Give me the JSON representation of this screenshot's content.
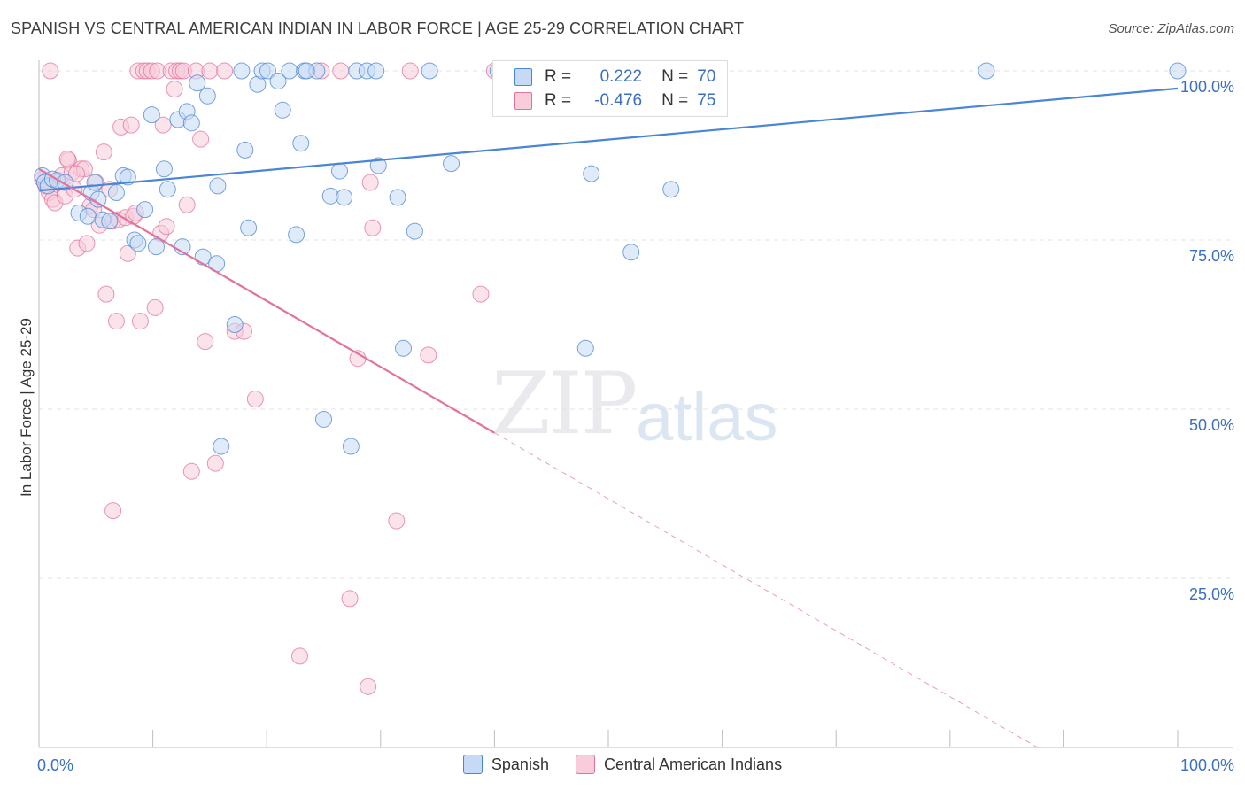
{
  "header": {
    "title": "SPANISH VS CENTRAL AMERICAN INDIAN IN LABOR FORCE | AGE 25-29 CORRELATION CHART",
    "source": "Source: ZipAtlas.com"
  },
  "watermark": {
    "zip": "ZIP",
    "atlas": "atlas"
  },
  "colors": {
    "spanish": "#4a86d6",
    "spanish_fill": "#c7daf5",
    "cai": "#e2739a",
    "cai_fill": "#f8ccdb",
    "tick_label": "#3a6fc4"
  },
  "stats": [
    {
      "r_label": "R =",
      "r_value": "0.222",
      "n_label": "N =",
      "n_value": "70"
    },
    {
      "r_label": "R =",
      "r_value": "-0.476",
      "n_label": "N =",
      "n_value": "75"
    }
  ],
  "legend": {
    "spanish": "Spanish",
    "cai": "Central American Indians"
  },
  "chart_data": {
    "type": "scatter",
    "ylabel": "In Labor Force | Age 25-29",
    "xlim": [
      0,
      100
    ],
    "ylim": [
      0,
      100
    ],
    "x_tick_labels": [
      {
        "value": 0,
        "label": "0.0%"
      },
      {
        "value": 100,
        "label": "100.0%"
      }
    ],
    "y_tick_labels": [
      {
        "value": 100,
        "label": "100.0%"
      },
      {
        "value": 75,
        "label": "75.0%"
      },
      {
        "value": 50,
        "label": "50.0%"
      },
      {
        "value": 25,
        "label": "25.0%"
      }
    ],
    "grid": true,
    "series": [
      {
        "name": "Spanish",
        "r": 0.222,
        "n": 70,
        "trend": {
          "x": [
            0,
            100
          ],
          "y": [
            82.3,
            97.4
          ],
          "extend": []
        },
        "points": [
          [
            0.3,
            84.5
          ],
          [
            0.5,
            83.5
          ],
          [
            0.8,
            83.0
          ],
          [
            1.2,
            84.0
          ],
          [
            1.6,
            83.8
          ],
          [
            2.3,
            83.5
          ],
          [
            3.5,
            79
          ],
          [
            4.3,
            78.5
          ],
          [
            4.6,
            82
          ],
          [
            4.9,
            83.5
          ],
          [
            5.2,
            81
          ],
          [
            5.6,
            78
          ],
          [
            6.2,
            77.8
          ],
          [
            6.8,
            82
          ],
          [
            7.4,
            84.5
          ],
          [
            7.8,
            84.3
          ],
          [
            8.4,
            75
          ],
          [
            8.7,
            74.5
          ],
          [
            9.3,
            79.5
          ],
          [
            9.9,
            93.5
          ],
          [
            10.3,
            74
          ],
          [
            11.0,
            85.5
          ],
          [
            11.3,
            82.5
          ],
          [
            12.2,
            92.8
          ],
          [
            12.6,
            74
          ],
          [
            13.0,
            94
          ],
          [
            13.4,
            92.3
          ],
          [
            13.9,
            98.2
          ],
          [
            14.4,
            72.5
          ],
          [
            14.8,
            96.3
          ],
          [
            15.6,
            71.5
          ],
          [
            15.7,
            83
          ],
          [
            17.2,
            62.5
          ],
          [
            18.1,
            88.3
          ],
          [
            18.4,
            76.8
          ],
          [
            17.8,
            100
          ],
          [
            19.2,
            98
          ],
          [
            19.6,
            100
          ],
          [
            20.1,
            100
          ],
          [
            21.0,
            98.5
          ],
          [
            21.4,
            94.2
          ],
          [
            22.0,
            100
          ],
          [
            22.6,
            75.8
          ],
          [
            23.0,
            89.3
          ],
          [
            23.3,
            100
          ],
          [
            24.4,
            100
          ],
          [
            25.0,
            48.5
          ],
          [
            25.6,
            81.5
          ],
          [
            26.4,
            85.2
          ],
          [
            26.8,
            81.3
          ],
          [
            27.4,
            44.5
          ],
          [
            27.9,
            100
          ],
          [
            28.8,
            100
          ],
          [
            29.6,
            100
          ],
          [
            29.8,
            86
          ],
          [
            31.5,
            81.3
          ],
          [
            32.0,
            59
          ],
          [
            33.0,
            76.3
          ],
          [
            34.3,
            100
          ],
          [
            36.2,
            86.3
          ],
          [
            40.3,
            100
          ],
          [
            48.0,
            59
          ],
          [
            48.5,
            84.8
          ],
          [
            52.0,
            73.2
          ],
          [
            55.5,
            82.5
          ],
          [
            59.2,
            100
          ],
          [
            83.2,
            100
          ],
          [
            100,
            100
          ],
          [
            16.0,
            44.5
          ],
          [
            23.5,
            100
          ]
        ]
      },
      {
        "name": "Central American Indians",
        "r": -0.476,
        "n": 75,
        "trend": {
          "x": [
            0,
            40
          ],
          "y": [
            85.5,
            46.5
          ],
          "extend": [
            40,
            88
          ]
        },
        "points": [
          [
            0.3,
            84
          ],
          [
            0.6,
            83
          ],
          [
            0.9,
            82
          ],
          [
            1.2,
            81
          ],
          [
            1.4,
            80.5
          ],
          [
            1.7,
            83.5
          ],
          [
            2.0,
            84.5
          ],
          [
            2.3,
            81.5
          ],
          [
            2.6,
            86.8
          ],
          [
            2.9,
            85
          ],
          [
            3.1,
            82.5
          ],
          [
            3.4,
            73.8
          ],
          [
            3.7,
            85.5
          ],
          [
            4.0,
            85.5
          ],
          [
            4.2,
            74.5
          ],
          [
            4.5,
            80
          ],
          [
            4.8,
            79.5
          ],
          [
            5.0,
            83.5
          ],
          [
            5.3,
            77.2
          ],
          [
            5.7,
            88
          ],
          [
            5.9,
            67
          ],
          [
            6.2,
            82.5
          ],
          [
            6.5,
            77.8
          ],
          [
            6.8,
            63
          ],
          [
            7.0,
            78
          ],
          [
            7.2,
            91.7
          ],
          [
            7.6,
            78.3
          ],
          [
            7.8,
            73
          ],
          [
            8.1,
            92
          ],
          [
            8.3,
            78.5
          ],
          [
            8.5,
            79
          ],
          [
            8.7,
            100
          ],
          [
            8.9,
            63
          ],
          [
            9.2,
            100
          ],
          [
            9.5,
            100
          ],
          [
            9.9,
            100
          ],
          [
            10.2,
            65
          ],
          [
            10.4,
            100
          ],
          [
            10.7,
            76
          ],
          [
            10.9,
            92
          ],
          [
            11.2,
            77
          ],
          [
            11.6,
            100
          ],
          [
            11.9,
            97.3
          ],
          [
            12.1,
            100
          ],
          [
            12.4,
            100
          ],
          [
            12.7,
            100
          ],
          [
            13.0,
            80.2
          ],
          [
            13.4,
            40.8
          ],
          [
            13.8,
            100
          ],
          [
            14.2,
            89.9
          ],
          [
            14.6,
            60
          ],
          [
            15.0,
            100
          ],
          [
            15.5,
            42
          ],
          [
            16.3,
            100
          ],
          [
            17.2,
            61.5
          ],
          [
            18.0,
            61.5
          ],
          [
            19.0,
            51.5
          ],
          [
            22.9,
            13.5
          ],
          [
            24.8,
            100
          ],
          [
            26.5,
            100
          ],
          [
            27.3,
            22
          ],
          [
            28.0,
            57.5
          ],
          [
            28.9,
            9
          ],
          [
            29.1,
            83.5
          ],
          [
            29.3,
            76.8
          ],
          [
            31.4,
            33.5
          ],
          [
            32.6,
            100
          ],
          [
            34.2,
            58
          ],
          [
            38.8,
            67
          ],
          [
            40.0,
            100
          ],
          [
            6.5,
            35
          ],
          [
            1.0,
            100
          ],
          [
            2.5,
            87
          ],
          [
            3.3,
            84.8
          ],
          [
            0.6,
            83.8
          ]
        ]
      }
    ]
  }
}
